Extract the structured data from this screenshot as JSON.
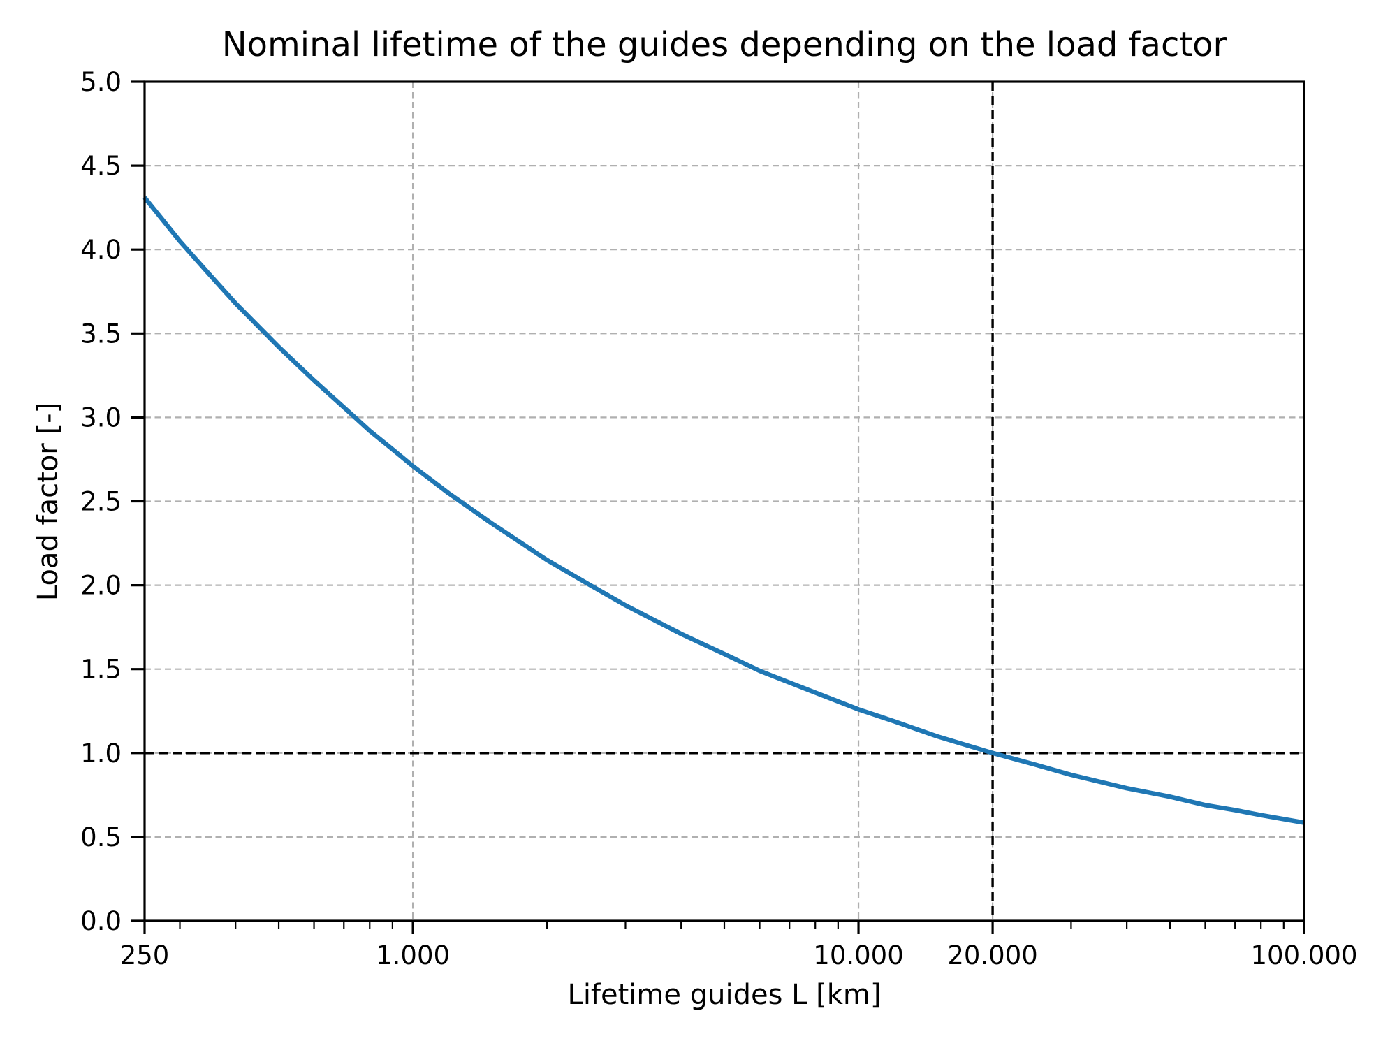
{
  "chart_data": {
    "type": "line",
    "title": "Nominal lifetime of the guides depending on the load factor",
    "xlabel": "Lifetime guides L [km]",
    "ylabel": "Load factor [-]",
    "x_scale": "log",
    "y_scale": "linear",
    "xlim": [
      250,
      100000
    ],
    "ylim": [
      0.0,
      5.0
    ],
    "grid": true,
    "legend": "none",
    "x_ticks": [
      {
        "value": 250,
        "label": "250"
      },
      {
        "value": 1000,
        "label": "1.000"
      },
      {
        "value": 10000,
        "label": "10.000"
      },
      {
        "value": 20000,
        "label": "20.000"
      },
      {
        "value": 100000,
        "label": "100.000"
      }
    ],
    "x_minor_ticks": [
      300,
      400,
      500,
      600,
      700,
      800,
      900,
      2000,
      3000,
      4000,
      5000,
      6000,
      7000,
      8000,
      9000,
      30000,
      40000,
      50000,
      60000,
      70000,
      80000,
      90000
    ],
    "y_ticks": [
      {
        "value": 0.0,
        "label": "0.0"
      },
      {
        "value": 0.5,
        "label": "0.5"
      },
      {
        "value": 1.0,
        "label": "1.0"
      },
      {
        "value": 1.5,
        "label": "1.5"
      },
      {
        "value": 2.0,
        "label": "2.0"
      },
      {
        "value": 2.5,
        "label": "2.5"
      },
      {
        "value": 3.0,
        "label": "3.0"
      },
      {
        "value": 3.5,
        "label": "3.5"
      },
      {
        "value": 4.0,
        "label": "4.0"
      },
      {
        "value": 4.5,
        "label": "4.5"
      },
      {
        "value": 5.0,
        "label": "5.0"
      }
    ],
    "series": [
      {
        "name": "load-factor-curve",
        "color": "#1f77b4",
        "points": [
          [
            250,
            4.31
          ],
          [
            300,
            4.05
          ],
          [
            350,
            3.85
          ],
          [
            400,
            3.68
          ],
          [
            500,
            3.42
          ],
          [
            600,
            3.22
          ],
          [
            700,
            3.06
          ],
          [
            800,
            2.92
          ],
          [
            900,
            2.81
          ],
          [
            1000,
            2.71
          ],
          [
            1200,
            2.55
          ],
          [
            1500,
            2.37
          ],
          [
            2000,
            2.15
          ],
          [
            2500,
            2.0
          ],
          [
            3000,
            1.88
          ],
          [
            4000,
            1.71
          ],
          [
            5000,
            1.59
          ],
          [
            6000,
            1.49
          ],
          [
            7000,
            1.42
          ],
          [
            8000,
            1.36
          ],
          [
            10000,
            1.26
          ],
          [
            12000,
            1.19
          ],
          [
            15000,
            1.1
          ],
          [
            20000,
            1.0
          ],
          [
            25000,
            0.93
          ],
          [
            30000,
            0.87
          ],
          [
            40000,
            0.79
          ],
          [
            50000,
            0.74
          ],
          [
            60000,
            0.69
          ],
          [
            70000,
            0.66
          ],
          [
            80000,
            0.63
          ],
          [
            100000,
            0.585
          ]
        ]
      }
    ],
    "annotations": {
      "reference_lines": [
        {
          "orientation": "vertical",
          "x": 20000,
          "style": "dashed",
          "color": "#000000"
        },
        {
          "orientation": "horizontal",
          "y": 1.0,
          "style": "dashed",
          "color": "#000000"
        }
      ]
    },
    "colors": {
      "curve": "#1f77b4",
      "grid": "#b0b0b0",
      "reference_line": "#000000",
      "axis": "#000000",
      "text": "#000000",
      "background": "#ffffff"
    }
  }
}
